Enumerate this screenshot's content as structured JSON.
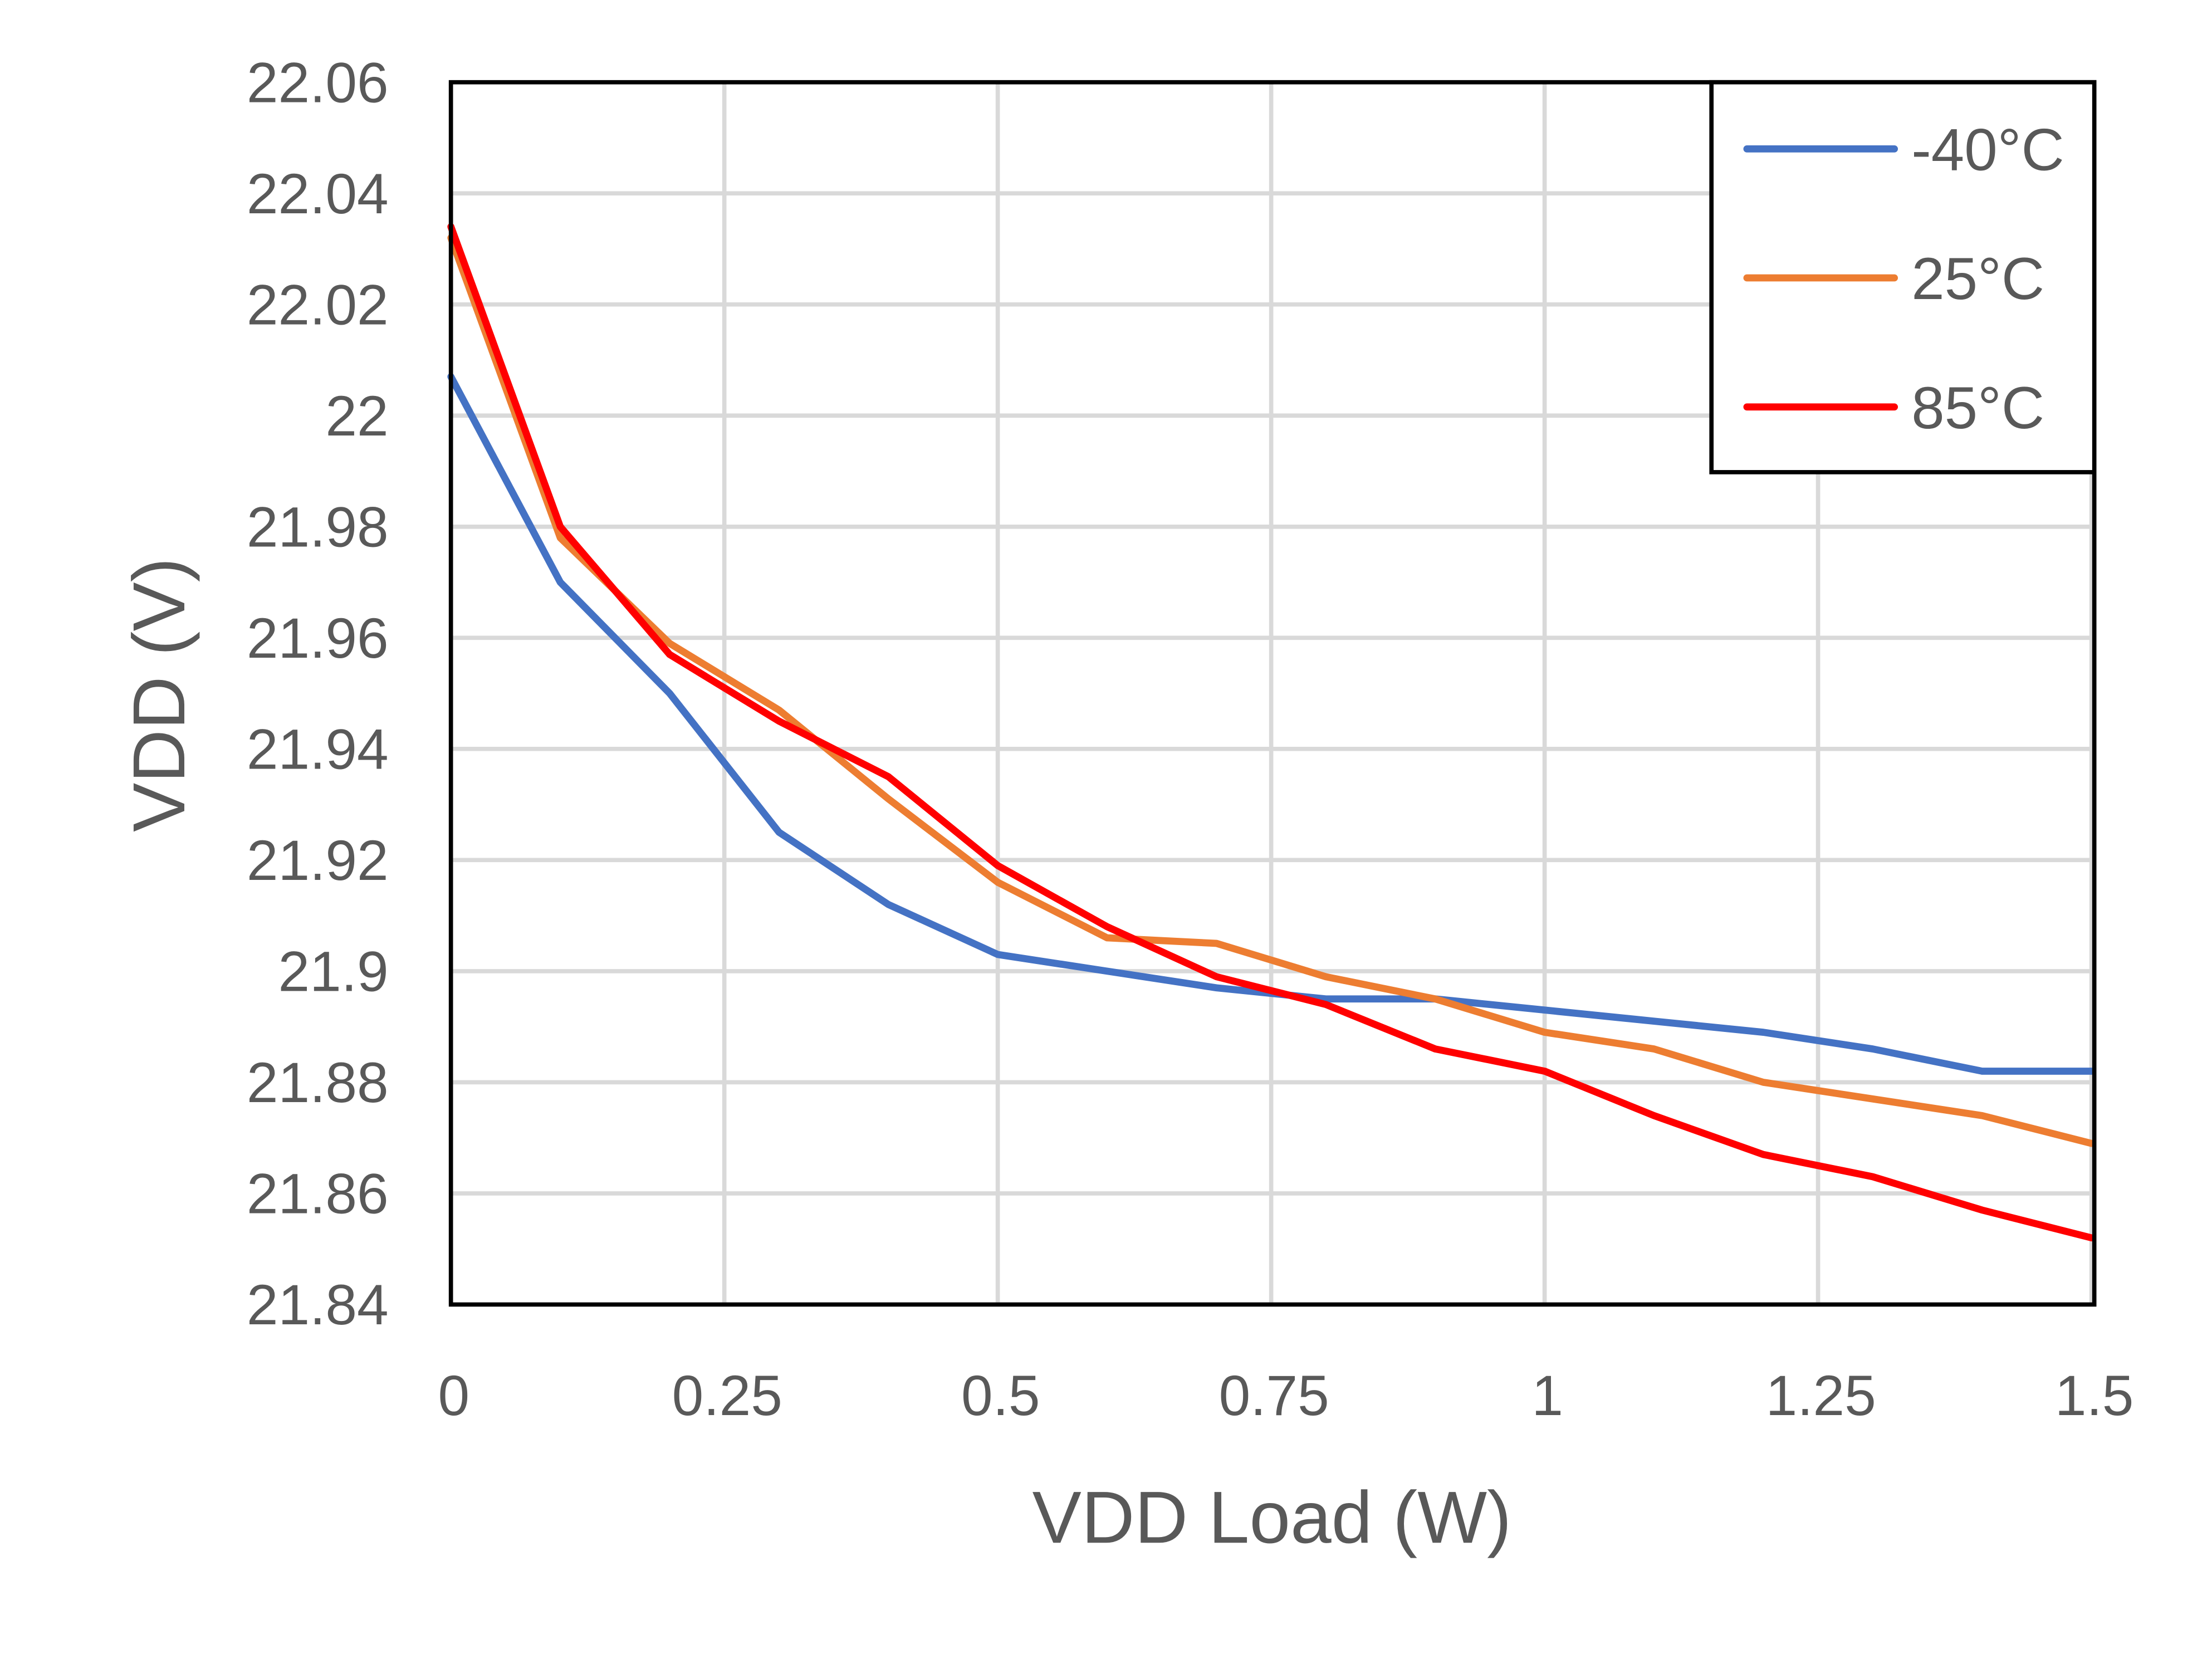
{
  "chart_data": {
    "type": "line",
    "title": "",
    "xlabel": "VDD Load (W)",
    "ylabel": "VDD (V)",
    "xlim": [
      0,
      1.5
    ],
    "ylim": [
      21.84,
      22.06
    ],
    "x_ticks": [
      "0",
      "0.25",
      "0.5",
      "0.75",
      "1",
      "1.25",
      "1.5"
    ],
    "y_ticks": [
      "21.84",
      "21.86",
      "21.88",
      "21.9",
      "21.92",
      "21.94",
      "21.96",
      "21.98",
      "22",
      "22.02",
      "22.04",
      "22.06"
    ],
    "grid": true,
    "legend_position": "top-right",
    "x": [
      0,
      0.1,
      0.2,
      0.3,
      0.4,
      0.5,
      0.6,
      0.7,
      0.8,
      0.9,
      1.0,
      1.1,
      1.2,
      1.3,
      1.4,
      1.5
    ],
    "series": [
      {
        "name": "-40°C",
        "color": "#4472C4",
        "values": [
          22.007,
          21.97,
          21.95,
          21.925,
          21.912,
          21.903,
          21.9,
          21.897,
          21.895,
          21.895,
          21.893,
          21.891,
          21.889,
          21.886,
          21.882,
          21.882
        ]
      },
      {
        "name": "25°C",
        "color": "#ED7D31",
        "values": [
          22.032,
          21.978,
          21.959,
          21.947,
          21.931,
          21.916,
          21.906,
          21.905,
          21.899,
          21.895,
          21.889,
          21.886,
          21.88,
          21.877,
          21.874,
          21.869
        ]
      },
      {
        "name": "85°C",
        "color": "#FF0000",
        "values": [
          22.034,
          21.98,
          21.957,
          21.945,
          21.935,
          21.919,
          21.908,
          21.899,
          21.894,
          21.886,
          21.882,
          21.874,
          21.867,
          21.863,
          21.857,
          21.852
        ]
      }
    ]
  }
}
